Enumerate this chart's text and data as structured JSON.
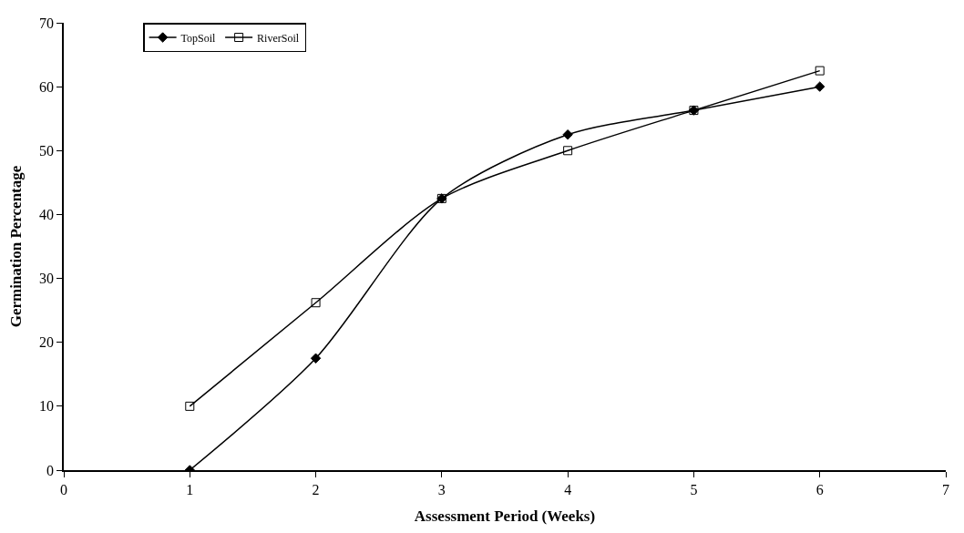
{
  "chart_data": {
    "type": "line",
    "xlabel": "Assessment Period (Weeks)",
    "ylabel": "Germination Percentage",
    "x": [
      1,
      2,
      3,
      4,
      5,
      6
    ],
    "series": [
      {
        "name": "TopSoil",
        "color": "#000000",
        "marker": "diamond",
        "values": [
          0,
          17.5,
          42.5,
          52.5,
          56.3,
          60
        ]
      },
      {
        "name": "RiverSoil",
        "color": "#000000",
        "marker": "square",
        "values": [
          10,
          26.2,
          42.5,
          50,
          56.3,
          62.5
        ]
      }
    ],
    "xlim": [
      0,
      7
    ],
    "xticks": [
      0,
      1,
      2,
      3,
      4,
      5,
      6,
      7
    ],
    "ylim": [
      0,
      70
    ],
    "yticks": [
      0,
      10,
      20,
      30,
      40,
      50,
      60,
      70
    ],
    "legend": "top left",
    "line_style": "solid"
  }
}
